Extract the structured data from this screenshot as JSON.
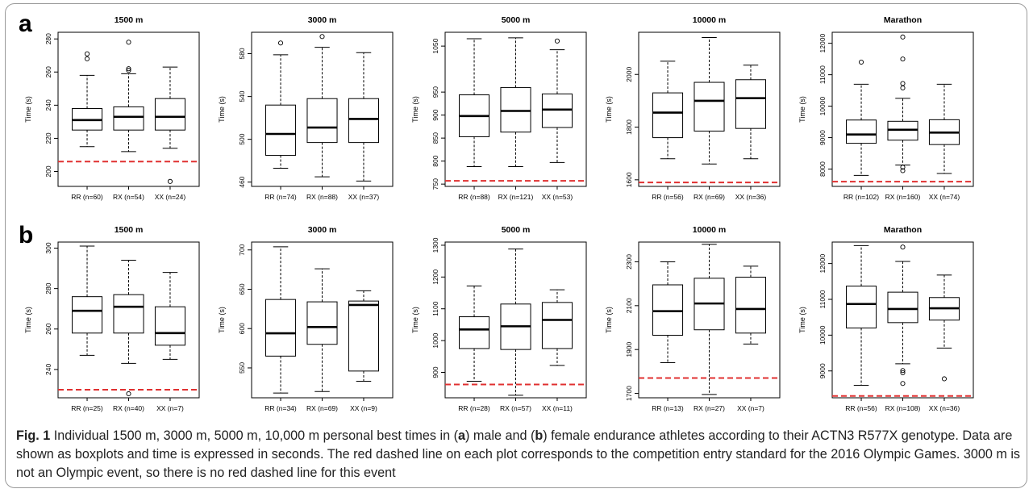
{
  "panels": [
    {
      "letter": "a"
    },
    {
      "letter": "b"
    }
  ],
  "caption": {
    "label": "Fig. 1",
    "t1": " Individual 1500 m, 3000 m, 5000 m, 10,000 m personal best times in (",
    "a": "a",
    "t2": ") male and (",
    "b": "b",
    "t3": ") female endurance athletes according to their ACTN3 R577X genotype. Data are shown as boxplots and time is expressed in seconds. The red dashed line on each plot corresponds to the competition entry standard for the 2016 Olympic Games. 3000 m is not an Olympic event, so there is no red dashed line for this event"
  },
  "colors": {
    "ref_line": "#e03030",
    "box": "#000000",
    "outlier": "#000000"
  },
  "chart_data": [
    {
      "type": "box",
      "panel": "a",
      "title": "1500 m",
      "ylabel": "Time (s)",
      "ylim": [
        191,
        284
      ],
      "yticks": [
        200,
        220,
        240,
        260,
        280
      ],
      "ref_line": 206,
      "categories": [
        "RR (n=60)",
        "RX (n=54)",
        "XX (n=24)"
      ],
      "boxes": [
        {
          "lo": 215,
          "q1": 225,
          "med": 231,
          "q3": 238,
          "hi": 258,
          "outliers": [
            268,
            271
          ]
        },
        {
          "lo": 212,
          "q1": 225,
          "med": 233,
          "q3": 239,
          "hi": 259,
          "outliers": [
            261,
            262,
            278
          ]
        },
        {
          "lo": 214,
          "q1": 225,
          "med": 233,
          "q3": 244,
          "hi": 263,
          "outliers": [
            194
          ]
        }
      ]
    },
    {
      "type": "box",
      "panel": "a",
      "title": "3000 m",
      "ylabel": "Time (s)",
      "ylim": [
        456,
        600
      ],
      "yticks": [
        460,
        500,
        540,
        580
      ],
      "categories": [
        "RR (n=74)",
        "RX (n=88)",
        "XX (n=37)"
      ],
      "boxes": [
        {
          "lo": 473,
          "q1": 485,
          "med": 505,
          "q3": 532,
          "hi": 579,
          "outliers": [
            590
          ]
        },
        {
          "lo": 465,
          "q1": 497,
          "med": 511,
          "q3": 538,
          "hi": 586,
          "outliers": [
            596
          ]
        },
        {
          "lo": 461,
          "q1": 497,
          "med": 519,
          "q3": 538,
          "hi": 581,
          "outliers": []
        }
      ]
    },
    {
      "type": "box",
      "panel": "a",
      "title": "5000 m",
      "ylabel": "Time (s)",
      "ylim": [
        745,
        1080
      ],
      "yticks": [
        750,
        800,
        850,
        900,
        950,
        1050
      ],
      "ref_line": 757,
      "categories": [
        "RR (n=88)",
        "RX (n=121)",
        "XX (n=53)"
      ],
      "boxes": [
        {
          "lo": 788,
          "q1": 853,
          "med": 898,
          "q3": 944,
          "hi": 1066,
          "outliers": []
        },
        {
          "lo": 788,
          "q1": 863,
          "med": 909,
          "q3": 960,
          "hi": 1068,
          "outliers": []
        },
        {
          "lo": 797,
          "q1": 873,
          "med": 912,
          "q3": 946,
          "hi": 1042,
          "outliers": [
            1061
          ]
        }
      ]
    },
    {
      "type": "box",
      "panel": "a",
      "title": "10000 m",
      "ylabel": "Time (s)",
      "ylim": [
        1575,
        2160
      ],
      "yticks": [
        1600,
        1800,
        2000
      ],
      "ref_line": 1590,
      "categories": [
        "RR (n=56)",
        "RX (n=69)",
        "XX (n=36)"
      ],
      "boxes": [
        {
          "lo": 1680,
          "q1": 1760,
          "med": 1855,
          "q3": 1930,
          "hi": 2050,
          "outliers": []
        },
        {
          "lo": 1660,
          "q1": 1785,
          "med": 1900,
          "q3": 1970,
          "hi": 2140,
          "outliers": []
        },
        {
          "lo": 1680,
          "q1": 1795,
          "med": 1910,
          "q3": 1980,
          "hi": 2035,
          "outliers": []
        }
      ]
    },
    {
      "type": "box",
      "panel": "a",
      "title": "Marathon",
      "ylabel": "Time (s)",
      "ylim": [
        7450,
        12350
      ],
      "yticks": [
        8000,
        9000,
        10000,
        11000,
        12000
      ],
      "ref_line": 7600,
      "categories": [
        "RR (n=102)",
        "RX (n=160)",
        "XX (n=74)"
      ],
      "boxes": [
        {
          "lo": 7800,
          "q1": 8820,
          "med": 9100,
          "q3": 9560,
          "hi": 10700,
          "outliers": [
            11400
          ]
        },
        {
          "lo": 8130,
          "q1": 8920,
          "med": 9250,
          "q3": 9520,
          "hi": 10250,
          "outliers": [
            7950,
            8060,
            10580,
            10720,
            11500,
            12200
          ]
        },
        {
          "lo": 7860,
          "q1": 8780,
          "med": 9160,
          "q3": 9570,
          "hi": 10700,
          "outliers": []
        }
      ]
    },
    {
      "type": "box",
      "panel": "b",
      "title": "1500 m",
      "ylabel": "Time (s)",
      "ylim": [
        226,
        303
      ],
      "yticks": [
        240,
        260,
        280,
        300
      ],
      "ref_line": 230,
      "categories": [
        "RR (n=25)",
        "RX (n=40)",
        "XX (n=7)"
      ],
      "boxes": [
        {
          "lo": 247,
          "q1": 258,
          "med": 269,
          "q3": 276,
          "hi": 301,
          "outliers": []
        },
        {
          "lo": 243,
          "q1": 258,
          "med": 271,
          "q3": 277,
          "hi": 294,
          "outliers": [
            228
          ]
        },
        {
          "lo": 245,
          "q1": 252,
          "med": 258,
          "q3": 271,
          "hi": 288,
          "outliers": []
        }
      ]
    },
    {
      "type": "box",
      "panel": "b",
      "title": "3000 m",
      "ylabel": "Time (s)",
      "ylim": [
        512,
        710
      ],
      "yticks": [
        550,
        600,
        650,
        700
      ],
      "categories": [
        "RR (n=34)",
        "RX (n=69)",
        "XX (n=9)"
      ],
      "boxes": [
        {
          "lo": 518,
          "q1": 565,
          "med": 594,
          "q3": 637,
          "hi": 704,
          "outliers": []
        },
        {
          "lo": 520,
          "q1": 580,
          "med": 602,
          "q3": 634,
          "hi": 676,
          "outliers": []
        },
        {
          "lo": 533,
          "q1": 546,
          "med": 630,
          "q3": 635,
          "hi": 648,
          "outliers": []
        }
      ]
    },
    {
      "type": "box",
      "panel": "b",
      "title": "5000 m",
      "ylabel": "Time (s)",
      "ylim": [
        820,
        1310
      ],
      "yticks": [
        900,
        1000,
        1100,
        1200,
        1300
      ],
      "ref_line": 862,
      "categories": [
        "RR (n=28)",
        "RX (n=57)",
        "XX (n=11)"
      ],
      "boxes": [
        {
          "lo": 872,
          "q1": 975,
          "med": 1035,
          "q3": 1075,
          "hi": 1172,
          "outliers": []
        },
        {
          "lo": 828,
          "q1": 972,
          "med": 1045,
          "q3": 1115,
          "hi": 1288,
          "outliers": []
        },
        {
          "lo": 922,
          "q1": 975,
          "med": 1065,
          "q3": 1120,
          "hi": 1160,
          "outliers": []
        }
      ]
    },
    {
      "type": "box",
      "panel": "b",
      "title": "10000 m",
      "ylabel": "Time (s)",
      "ylim": [
        1680,
        2390
      ],
      "yticks": [
        1700,
        1900,
        2100,
        2300
      ],
      "ref_line": 1770,
      "categories": [
        "RR (n=13)",
        "RX (n=27)",
        "XX (n=7)"
      ],
      "boxes": [
        {
          "lo": 1840,
          "q1": 1965,
          "med": 2075,
          "q3": 2195,
          "hi": 2300,
          "outliers": []
        },
        {
          "lo": 1695,
          "q1": 1990,
          "med": 2110,
          "q3": 2225,
          "hi": 2380,
          "outliers": []
        },
        {
          "lo": 1925,
          "q1": 1975,
          "med": 2085,
          "q3": 2230,
          "hi": 2280,
          "outliers": []
        }
      ]
    },
    {
      "type": "box",
      "panel": "b",
      "title": "Marathon",
      "ylabel": "Time (s)",
      "ylim": [
        8250,
        12600
      ],
      "yticks": [
        9000,
        10000,
        11000,
        12000
      ],
      "ref_line": 8300,
      "categories": [
        "RR (n=56)",
        "RX (n=108)",
        "XX (n=36)"
      ],
      "boxes": [
        {
          "lo": 8600,
          "q1": 10200,
          "med": 10870,
          "q3": 11370,
          "hi": 12500,
          "outliers": []
        },
        {
          "lo": 9200,
          "q1": 10350,
          "med": 10730,
          "q3": 11200,
          "hi": 12060,
          "outliers": [
            8650,
            8950,
            9010,
            12460
          ]
        },
        {
          "lo": 9640,
          "q1": 10420,
          "med": 10750,
          "q3": 11050,
          "hi": 11680,
          "outliers": [
            8780
          ]
        }
      ]
    }
  ]
}
